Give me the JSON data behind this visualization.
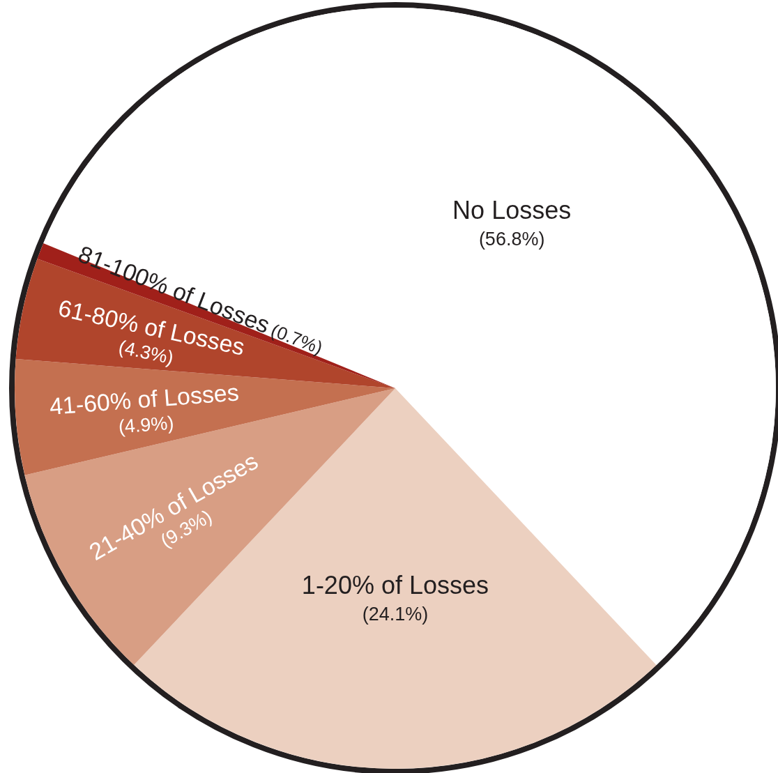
{
  "chart_data": {
    "type": "pie",
    "categories": [
      "No Losses",
      "1-20% of Losses",
      "21-40% of Losses",
      "41-60% of Losses",
      "61-80% of Losses",
      "81-100% of Losses"
    ],
    "values": [
      56.8,
      24.1,
      9.3,
      4.9,
      4.3,
      0.7
    ],
    "value_labels": [
      "(56.8%)",
      "(24.1%)",
      "(9.3%)",
      "(4.9%)",
      "(4.3%)",
      "(0.7%)"
    ],
    "colors": [
      "#ffffff",
      "#ecd0c0",
      "#d89e84",
      "#c47050",
      "#b0452c",
      "#a0201a"
    ]
  }
}
